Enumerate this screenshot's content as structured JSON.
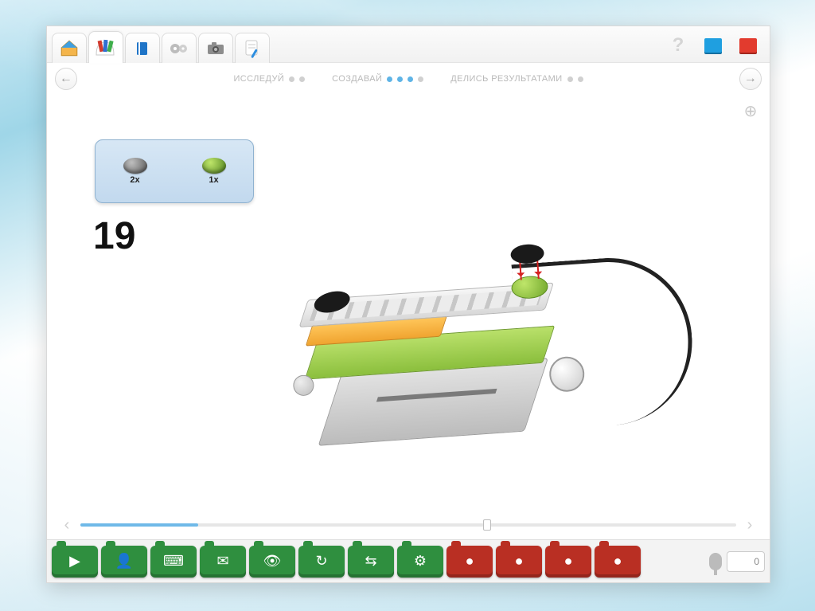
{
  "toolbar": {
    "icons": [
      "home",
      "library",
      "book",
      "gears",
      "camera",
      "note"
    ],
    "help_icon": "help",
    "window_icon_color": "#1f9fe0",
    "close_icon_color": "#e23b2e"
  },
  "progress": {
    "sections": [
      {
        "label": "ИССЛЕДУЙ",
        "dots": [
          false,
          false
        ]
      },
      {
        "label": "СОЗДАВАЙ",
        "dots": [
          true,
          true,
          true,
          false
        ]
      },
      {
        "label": "ДЕЛИСЬ РЕЗУЛЬТАТАМИ",
        "dots": [
          false,
          false
        ]
      }
    ]
  },
  "step": {
    "number": "19",
    "parts": [
      {
        "qty": "2x",
        "color": "#6b6b6b"
      },
      {
        "qty": "1x",
        "color": "#6fa52a"
      }
    ],
    "parts_box_bg": "#cfe2f3"
  },
  "pager": {
    "fill_percent": 18,
    "thumb_percent": 62
  },
  "palette": {
    "green": "#2f8f3f",
    "red": "#b92f23",
    "items": [
      {
        "c": "green",
        "g": "▶"
      },
      {
        "c": "green",
        "g": "👤"
      },
      {
        "c": "green",
        "g": "⌨"
      },
      {
        "c": "green",
        "g": "✉"
      },
      {
        "c": "green",
        "g": "👁"
      },
      {
        "c": "green",
        "g": "↻"
      },
      {
        "c": "green",
        "g": "⇆"
      },
      {
        "c": "green",
        "g": "⚙"
      },
      {
        "c": "red",
        "g": "●"
      },
      {
        "c": "red",
        "g": "●"
      },
      {
        "c": "red",
        "g": "●"
      },
      {
        "c": "red",
        "g": "●"
      }
    ],
    "counter": "0"
  }
}
